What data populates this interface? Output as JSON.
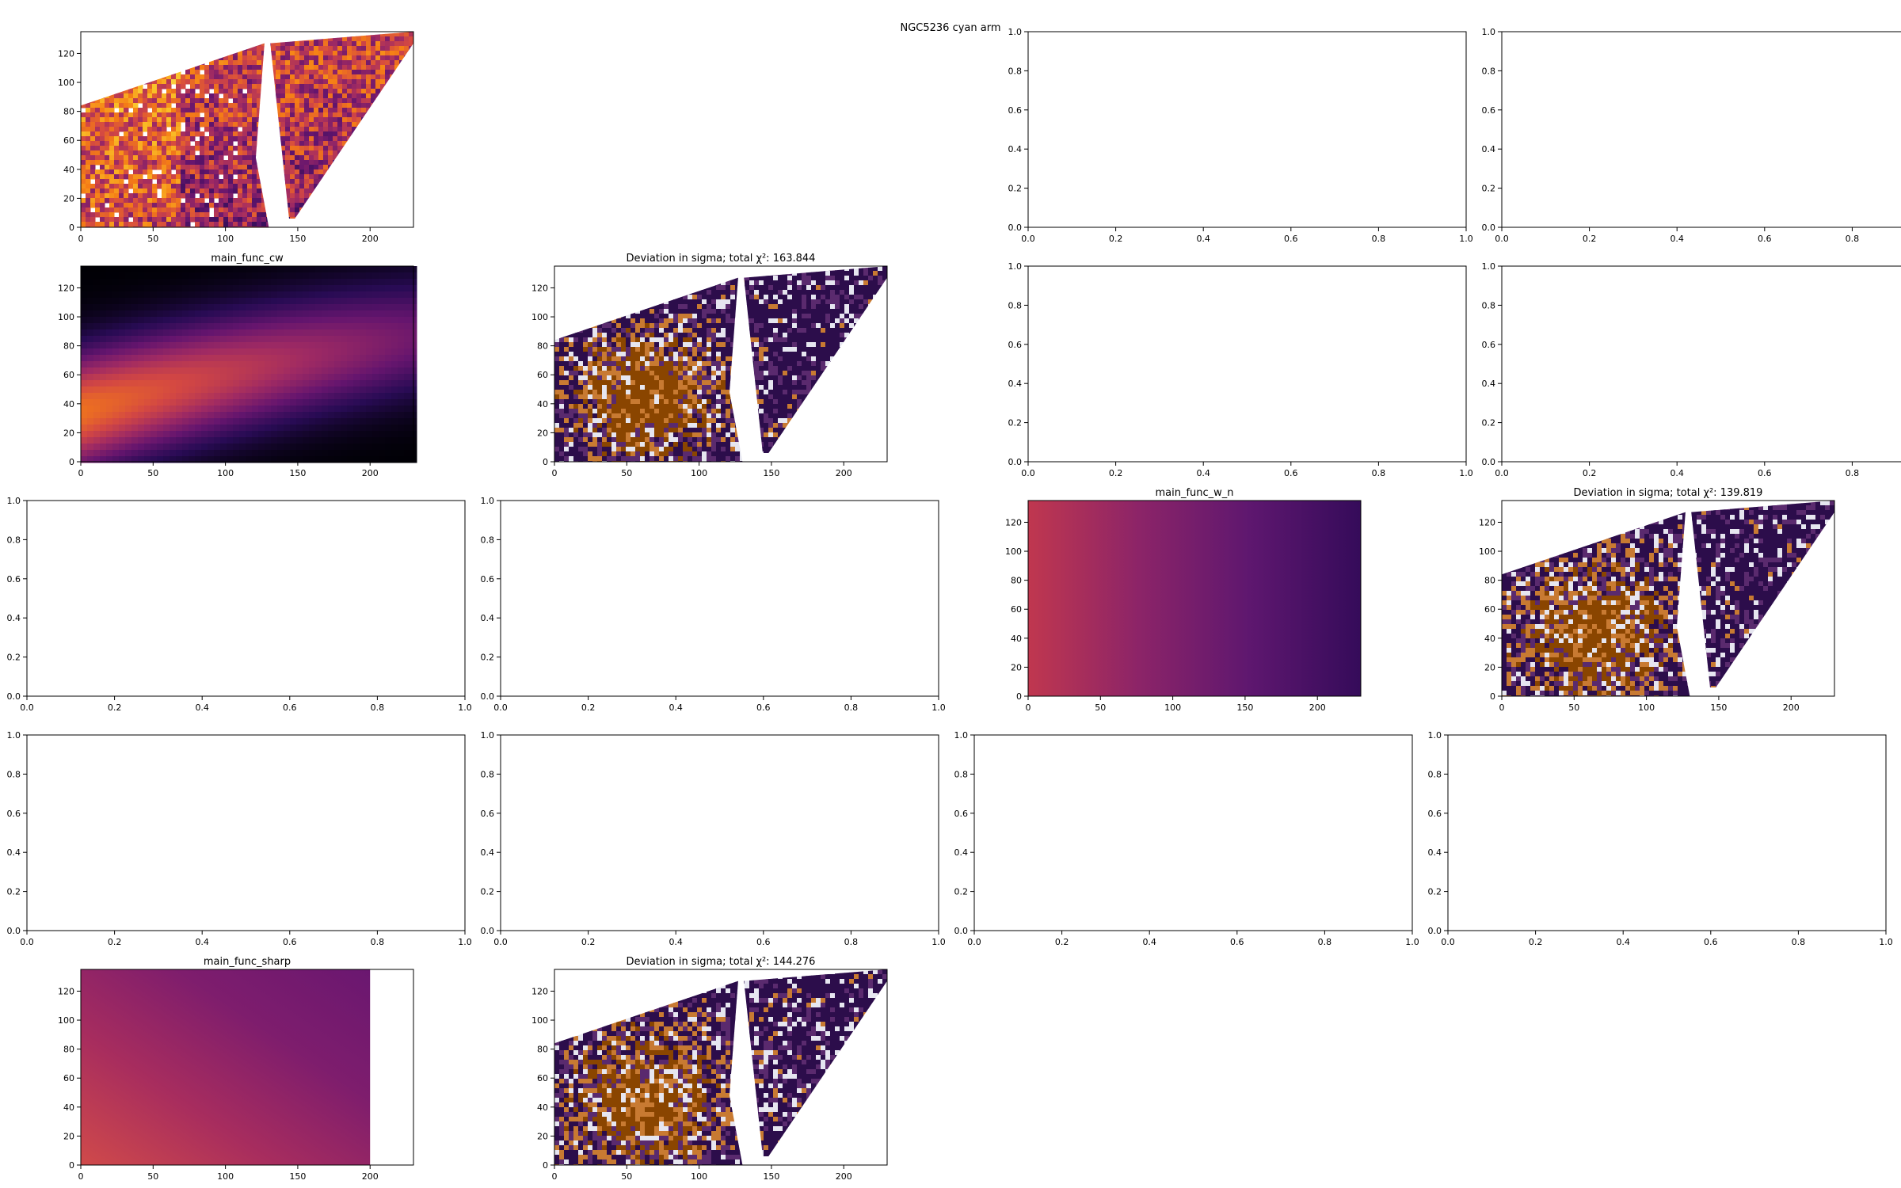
{
  "figure": {
    "suptitle": "NGC5236 cyan arm"
  },
  "colors": {
    "inferno": [
      "#000004",
      "#280b54",
      "#65156e",
      "#9f2a63",
      "#d44842",
      "#f57d15",
      "#fac127",
      "#fcffa4"
    ],
    "residual": [
      "#2c0d4b",
      "#5a2a6e",
      "#e6e6f0",
      "#c87a32",
      "#8a4500"
    ],
    "axis": "#000000"
  },
  "chart_data": [
    {
      "id": "data_map",
      "type": "heatmap",
      "title": "",
      "kind": "data",
      "xticks": [
        0,
        50,
        100,
        150,
        200
      ],
      "yticks": [
        0,
        20,
        40,
        60,
        80,
        100,
        120
      ],
      "xlim": [
        0,
        230
      ],
      "ylim": [
        0,
        135
      ]
    },
    {
      "id": "empty_r1c3",
      "type": "empty",
      "title": "",
      "xticks": [
        "0.0",
        "0.2",
        "0.4",
        "0.6",
        "0.8",
        "1.0"
      ],
      "yticks": [
        "0.0",
        "0.2",
        "0.4",
        "0.6",
        "0.8",
        "1.0"
      ]
    },
    {
      "id": "empty_r1c4",
      "type": "empty",
      "title": "",
      "xticks": [
        "0.0",
        "0.2",
        "0.4",
        "0.6",
        "0.8",
        "1.0"
      ],
      "yticks": [
        "0.0",
        "0.2",
        "0.4",
        "0.6",
        "0.8",
        "1.0"
      ]
    },
    {
      "id": "model_cw",
      "type": "heatmap",
      "title": "main_func_cw",
      "kind": "model_cw",
      "xticks": [
        0,
        50,
        100,
        150,
        200
      ],
      "yticks": [
        0,
        20,
        40,
        60,
        80,
        100,
        120
      ],
      "xlim": [
        0,
        230
      ],
      "ylim": [
        0,
        135
      ]
    },
    {
      "id": "resid_cw",
      "type": "heatmap",
      "title": "Deviation in sigma; total χ²: 163.844",
      "kind": "residual",
      "xticks": [
        0,
        50,
        100,
        150,
        200
      ],
      "yticks": [
        0,
        20,
        40,
        60,
        80,
        100,
        120
      ],
      "xlim": [
        0,
        230
      ],
      "ylim": [
        0,
        135
      ]
    },
    {
      "id": "empty_r2c3",
      "type": "empty",
      "title": "",
      "xticks": [
        "0.0",
        "0.2",
        "0.4",
        "0.6",
        "0.8",
        "1.0"
      ],
      "yticks": [
        "0.0",
        "0.2",
        "0.4",
        "0.6",
        "0.8",
        "1.0"
      ]
    },
    {
      "id": "empty_r2c4",
      "type": "empty",
      "title": "",
      "xticks": [
        "0.0",
        "0.2",
        "0.4",
        "0.6",
        "0.8",
        "1.0"
      ],
      "yticks": [
        "0.0",
        "0.2",
        "0.4",
        "0.6",
        "0.8",
        "1.0"
      ]
    },
    {
      "id": "empty_r3c1",
      "type": "empty",
      "title": "",
      "xticks": [
        "0.0",
        "0.2",
        "0.4",
        "0.6",
        "0.8",
        "1.0"
      ],
      "yticks": [
        "0.0",
        "0.2",
        "0.4",
        "0.6",
        "0.8",
        "1.0"
      ]
    },
    {
      "id": "empty_r3c2",
      "type": "empty",
      "title": "",
      "xticks": [
        "0.0",
        "0.2",
        "0.4",
        "0.6",
        "0.8",
        "1.0"
      ],
      "yticks": [
        "0.0",
        "0.2",
        "0.4",
        "0.6",
        "0.8",
        "1.0"
      ]
    },
    {
      "id": "model_w_n",
      "type": "heatmap",
      "title": "main_func_w_n",
      "kind": "model_wn",
      "xticks": [
        0,
        50,
        100,
        150,
        200
      ],
      "yticks": [
        0,
        20,
        40,
        60,
        80,
        100,
        120
      ],
      "xlim": [
        0,
        230
      ],
      "ylim": [
        0,
        135
      ]
    },
    {
      "id": "resid_w_n",
      "type": "heatmap",
      "title": "Deviation in sigma; total χ²: 139.819",
      "kind": "residual",
      "xticks": [
        0,
        50,
        100,
        150,
        200
      ],
      "yticks": [
        0,
        20,
        40,
        60,
        80,
        100,
        120
      ],
      "xlim": [
        0,
        230
      ],
      "ylim": [
        0,
        135
      ]
    },
    {
      "id": "empty_r4c1",
      "type": "empty",
      "title": "",
      "xticks": [
        "0.0",
        "0.2",
        "0.4",
        "0.6",
        "0.8",
        "1.0"
      ],
      "yticks": [
        "0.0",
        "0.2",
        "0.4",
        "0.6",
        "0.8",
        "1.0"
      ]
    },
    {
      "id": "empty_r4c2",
      "type": "empty",
      "title": "",
      "xticks": [
        "0.0",
        "0.2",
        "0.4",
        "0.6",
        "0.8",
        "1.0"
      ],
      "yticks": [
        "0.0",
        "0.2",
        "0.4",
        "0.6",
        "0.8",
        "1.0"
      ]
    },
    {
      "id": "empty_r4c3",
      "type": "empty",
      "title": "",
      "xticks": [
        "0.0",
        "0.2",
        "0.4",
        "0.6",
        "0.8",
        "1.0"
      ],
      "yticks": [
        "0.0",
        "0.2",
        "0.4",
        "0.6",
        "0.8",
        "1.0"
      ]
    },
    {
      "id": "empty_r4c4",
      "type": "empty",
      "title": "",
      "xticks": [
        "0.0",
        "0.2",
        "0.4",
        "0.6",
        "0.8",
        "1.0"
      ],
      "yticks": [
        "0.0",
        "0.2",
        "0.4",
        "0.6",
        "0.8",
        "1.0"
      ]
    },
    {
      "id": "model_sharp",
      "type": "heatmap",
      "title": "main_func_sharp",
      "kind": "model_sharp",
      "xticks": [
        0,
        50,
        100,
        150,
        200
      ],
      "yticks": [
        0,
        20,
        40,
        60,
        80,
        100,
        120
      ],
      "xlim": [
        0,
        230
      ],
      "ylim": [
        0,
        135
      ],
      "data_xmax": 200
    },
    {
      "id": "resid_sharp",
      "type": "heatmap",
      "title": "Deviation in sigma; total χ²: 144.276",
      "kind": "residual",
      "xticks": [
        0,
        50,
        100,
        150,
        200
      ],
      "yticks": [
        0,
        20,
        40,
        60,
        80,
        100,
        120
      ],
      "xlim": [
        0,
        230
      ],
      "ylim": [
        0,
        135
      ]
    }
  ]
}
